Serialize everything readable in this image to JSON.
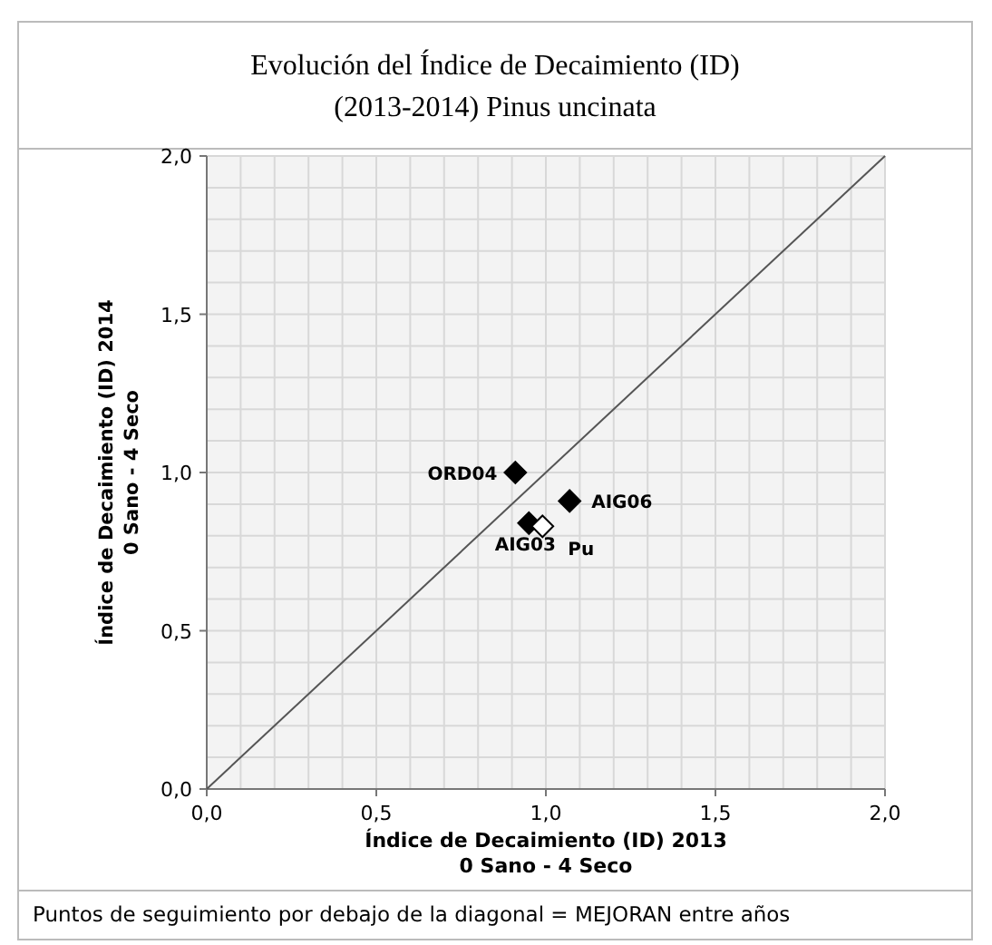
{
  "chart_data": {
    "type": "scatter",
    "title": "Evolución del Índice de Decaimiento (ID)",
    "subtitle": "(2013-2014) Pinus uncinata",
    "xlabel": "Índice de Decaimiento (ID) 2013\n0 Sano - 4 Seco",
    "ylabel": "Índice de Decaimiento (ID) 2014\n0 Sano - 4 Seco",
    "annotations": [
      "Puntos de seguimiento por debajo de la diagonal = MEJORAN entre años"
    ],
    "xlim": [
      0,
      2
    ],
    "ylim": [
      0,
      2
    ],
    "xticks": [
      {
        "value": 0,
        "label": "0,0"
      },
      {
        "value": 0.1,
        "label": null
      },
      {
        "value": 0.2,
        "label": null
      },
      {
        "value": 0.3,
        "label": null
      },
      {
        "value": 0.4,
        "label": null
      },
      {
        "value": 0.5,
        "label": "0,5"
      },
      {
        "value": 0.6,
        "label": null
      },
      {
        "value": 0.7,
        "label": null
      },
      {
        "value": 0.8,
        "label": null
      },
      {
        "value": 0.9,
        "label": null
      },
      {
        "value": 1,
        "label": "1,0"
      },
      {
        "value": 1.1,
        "label": null
      },
      {
        "value": 1.2,
        "label": null
      },
      {
        "value": 1.3,
        "label": null
      },
      {
        "value": 1.4,
        "label": null
      },
      {
        "value": 1.5,
        "label": "1,5"
      },
      {
        "value": 1.6,
        "label": null
      },
      {
        "value": 1.7,
        "label": null
      },
      {
        "value": 1.8,
        "label": null
      },
      {
        "value": 1.9,
        "label": null
      },
      {
        "value": 2,
        "label": "2,0"
      }
    ],
    "yticks": [
      {
        "value": 0,
        "label": "0,0"
      },
      {
        "value": 0.1,
        "label": null
      },
      {
        "value": 0.2,
        "label": null
      },
      {
        "value": 0.3,
        "label": null
      },
      {
        "value": 0.4,
        "label": null
      },
      {
        "value": 0.5,
        "label": "0,5"
      },
      {
        "value": 0.6,
        "label": null
      },
      {
        "value": 0.7,
        "label": null
      },
      {
        "value": 0.8,
        "label": null
      },
      {
        "value": 0.9,
        "label": null
      },
      {
        "value": 1,
        "label": "1,0"
      },
      {
        "value": 1.1,
        "label": null
      },
      {
        "value": 1.2,
        "label": null
      },
      {
        "value": 1.3,
        "label": null
      },
      {
        "value": 1.4,
        "label": null
      },
      {
        "value": 1.5,
        "label": "1,5"
      },
      {
        "value": 1.6,
        "label": null
      },
      {
        "value": 1.7,
        "label": null
      },
      {
        "value": 1.8,
        "label": null
      },
      {
        "value": 1.9,
        "label": null
      },
      {
        "value": 2,
        "label": "2,0"
      }
    ],
    "grid": true,
    "legend": false,
    "marker": "diamond",
    "series": [
      {
        "type": "line",
        "color": "#555555",
        "x": [
          0,
          2
        ],
        "values": [
          0,
          2
        ],
        "marker": "none"
      },
      {
        "name": "ORD04",
        "color": "#000000",
        "x": [
          0.91
        ],
        "values": [
          1.0
        ]
      },
      {
        "name": "AIG06",
        "color": "#000000",
        "x": [
          1.07
        ],
        "values": [
          0.91
        ]
      },
      {
        "name": "AIG03",
        "color": "#000000",
        "x": [
          0.95
        ],
        "values": [
          0.84
        ]
      },
      {
        "name": "Pu",
        "color": "#ffffff",
        "x": [
          0.99
        ],
        "values": [
          0.83
        ]
      }
    ]
  }
}
